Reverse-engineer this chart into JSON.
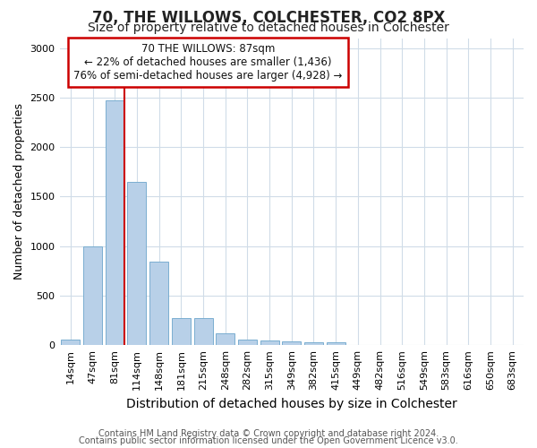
{
  "title1": "70, THE WILLOWS, COLCHESTER, CO2 8PX",
  "title2": "Size of property relative to detached houses in Colchester",
  "xlabel": "Distribution of detached houses by size in Colchester",
  "ylabel": "Number of detached properties",
  "categories": [
    "14sqm",
    "47sqm",
    "81sqm",
    "114sqm",
    "148sqm",
    "181sqm",
    "215sqm",
    "248sqm",
    "282sqm",
    "315sqm",
    "349sqm",
    "382sqm",
    "415sqm",
    "449sqm",
    "482sqm",
    "516sqm",
    "549sqm",
    "583sqm",
    "616sqm",
    "650sqm",
    "683sqm"
  ],
  "values": [
    55,
    1000,
    2470,
    1650,
    840,
    275,
    275,
    120,
    55,
    50,
    38,
    25,
    32,
    0,
    0,
    0,
    0,
    0,
    0,
    0,
    0
  ],
  "bar_color": "#b8d0e8",
  "bar_edge_color": "#7aaed0",
  "property_label": "70 THE WILLOWS: 87sqm",
  "annotation_line1": "← 22% of detached houses are smaller (1,436)",
  "annotation_line2": "76% of semi-detached houses are larger (4,928) →",
  "vline_color": "#cc0000",
  "box_edge_color": "#cc0000",
  "background_color": "#ffffff",
  "grid_color": "#d0dce8",
  "ylim": [
    0,
    3100
  ],
  "yticks": [
    0,
    500,
    1000,
    1500,
    2000,
    2500,
    3000
  ],
  "footer1": "Contains HM Land Registry data © Crown copyright and database right 2024.",
  "footer2": "Contains public sector information licensed under the Open Government Licence v3.0.",
  "title1_fontsize": 12,
  "title2_fontsize": 10,
  "ylabel_fontsize": 9,
  "xlabel_fontsize": 10,
  "tick_fontsize": 8,
  "footer_fontsize": 7
}
